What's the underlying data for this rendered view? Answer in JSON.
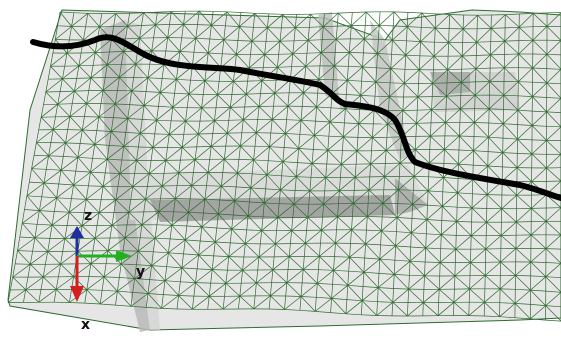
{
  "viewport": {
    "background": "#ffffff"
  },
  "mesh": {
    "line_color": "#2f6b2f",
    "face_color": "#e4e4e4",
    "shade_dark": "#9e9e9e",
    "shade_mid": "#c4c4c4",
    "shade_light": "#dcdcdc"
  },
  "path": {
    "color": "#000000"
  },
  "axes": {
    "z": {
      "label": "z",
      "color": "#1f2f9f"
    },
    "y": {
      "label": "y",
      "color": "#22b022"
    },
    "x": {
      "label": "x",
      "color": "#d41f1f"
    }
  }
}
